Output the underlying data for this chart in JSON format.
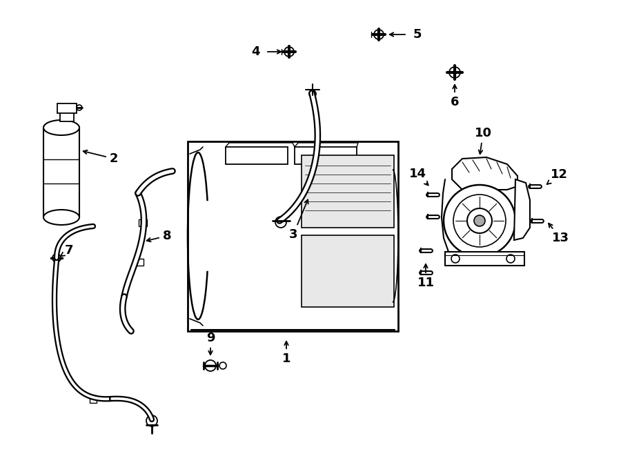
{
  "bg_color": "#ffffff",
  "line_color": "#000000",
  "lw": 1.4,
  "figsize": [
    9.0,
    6.61
  ],
  "dpi": 100
}
